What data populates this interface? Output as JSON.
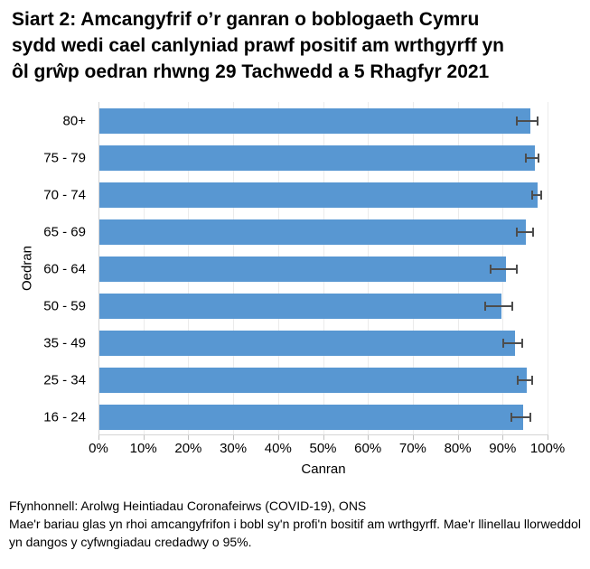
{
  "header": {
    "title_lines": [
      "Siart 2: Amcangyfrif o’r ganran o boblogaeth Cymru",
      "sydd wedi cael canlyniad prawf positif am wrthgyrff yn",
      "ôl grŵp oedran rhwng 29 Tachwedd a 5 Rhagfyr 2021"
    ]
  },
  "chart_data": {
    "type": "bar",
    "orientation": "horizontal",
    "title": "Siart 2: Amcangyfrif o’r ganran o boblogaeth Cymru sydd wedi cael canlyniad prawf positif am wrthgyrff yn ôl grŵp oedran rhwng 29 Tachwedd a 5 Rhagfyr 2021",
    "categories": [
      "80+",
      "75 - 79",
      "70 - 74",
      "65 - 69",
      "60 - 64",
      "50 - 59",
      "35 - 49",
      "25 - 34",
      "16 - 24"
    ],
    "values": [
      96.0,
      97.0,
      97.5,
      95.0,
      90.5,
      89.6,
      92.5,
      95.1,
      94.3
    ],
    "ci_low": [
      93.2,
      95.1,
      96.5,
      93.1,
      87.3,
      86.2,
      90.1,
      93.4,
      91.9
    ],
    "ci_high": [
      97.8,
      98.0,
      98.5,
      96.8,
      93.1,
      92.1,
      94.3,
      96.6,
      96.1
    ],
    "xlabel": "Canran",
    "ylabel": "Oedran",
    "xlim": [
      0,
      100
    ],
    "x_tick_labels": [
      "0%",
      "10%",
      "20%",
      "30%",
      "40%",
      "50%",
      "60%",
      "70%",
      "80%",
      "90%",
      "100%"
    ],
    "grid": true,
    "legend": false,
    "bar_color": "#5897D2",
    "error_bar_color": "#4D4D4D",
    "gridline_color": "#EBEBEB"
  },
  "footer": {
    "source": "Ffynhonnell: Arolwg Heintiadau Coronafeirws (COVID-19), ONS",
    "note": "Mae'r bariau glas yn rhoi amcangyfrifon i bobl sy'n profi'n bositif am wrthgyrff. Mae'r llinellau llorweddol yn dangos y cyfwngiadau credadwy o 95%."
  }
}
